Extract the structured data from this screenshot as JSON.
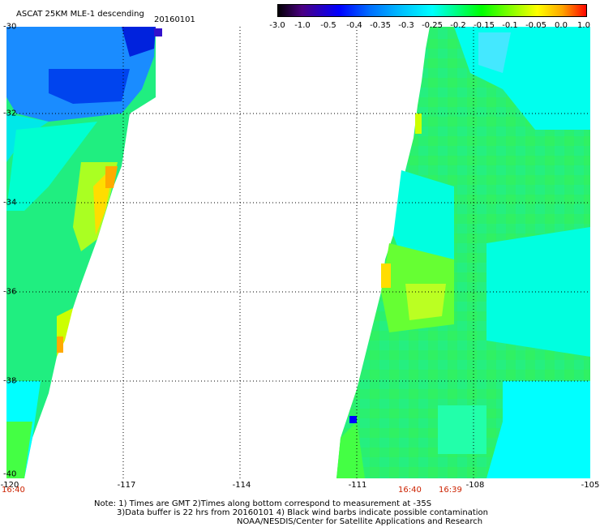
{
  "header": {
    "title": "ASCAT 25KM MLE-1 descending",
    "date": "20160101"
  },
  "colorbar": {
    "ticks": [
      "-3.0",
      "-1.0",
      "-0.5",
      "-0.4",
      "-0.35",
      "-0.3",
      "-0.25",
      "-0.2",
      "-0.15",
      "-0.1",
      "-0.05",
      "0.0",
      "1.0"
    ],
    "colors": [
      "#000000",
      "#4b0082",
      "#0000ff",
      "#0070ff",
      "#00bfff",
      "#00ffff",
      "#00ff80",
      "#00ff00",
      "#80ff00",
      "#ffff00",
      "#ffa500",
      "#ff0000"
    ]
  },
  "axes": {
    "lat_labels": [
      "-30",
      "-32",
      "-34",
      "-36",
      "-38",
      "-40"
    ],
    "lon_labels": [
      "-120",
      "-117",
      "-114",
      "-111",
      "-108",
      "-105"
    ]
  },
  "times": {
    "left": "16:40",
    "mid1": "16:40",
    "mid2": "16:39"
  },
  "notes": {
    "line1": "Note: 1) Times are GMT 2)Times along bottom correspond to measurement at -35S",
    "line2": "3)Data buffer is 22 hrs from 20160101 4) Black wind barbs indicate possible contamination",
    "line3": "NOAA/NESDIS/Center for Satellite Applications and Research"
  }
}
